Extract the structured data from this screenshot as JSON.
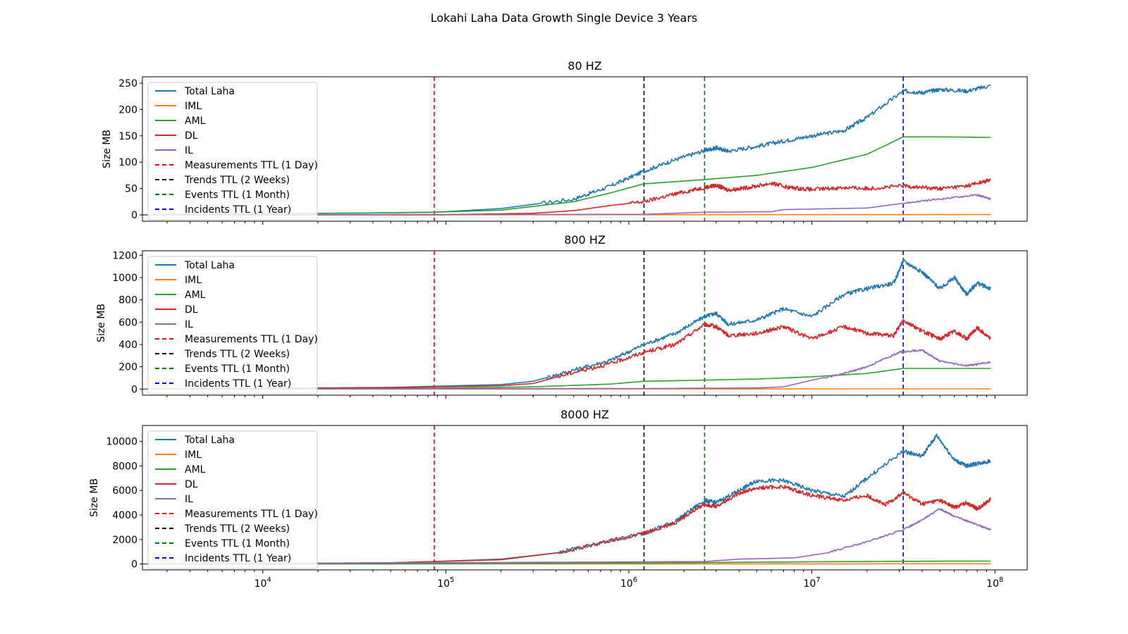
{
  "figure": {
    "suptitle": "Lokahi Laha Data Growth Single Device 3 Years"
  },
  "colors": {
    "Total Laha": "#1f77b4",
    "IML": "#ff7f0e",
    "AML": "#2ca02c",
    "DL": "#d62728",
    "IL": "#9467bd",
    "Measurements TTL (1 Day)": "#ff0000",
    "Trends TTL (2 Weeks)": "#000000",
    "Events TTL (1 Month)": "#008000",
    "Incidents TTL (1 Year)": "#0000ff"
  },
  "legend": {
    "placement": "upper-left",
    "entries": [
      {
        "label": "Total Laha",
        "style": "solid"
      },
      {
        "label": "IML",
        "style": "solid"
      },
      {
        "label": "AML",
        "style": "solid"
      },
      {
        "label": "DL",
        "style": "solid"
      },
      {
        "label": "IL",
        "style": "solid"
      },
      {
        "label": "Measurements TTL (1 Day)",
        "style": "dashed"
      },
      {
        "label": "Trends TTL (2 Weeks)",
        "style": "dashed"
      },
      {
        "label": "Events TTL (1 Month)",
        "style": "dashed"
      },
      {
        "label": "Incidents TTL (1 Year)",
        "style": "dashed"
      }
    ]
  },
  "chart_data": [
    {
      "type": "line",
      "title": "80 HZ",
      "xlabel": "",
      "ylabel": "Size MB",
      "xscale": "log",
      "xlim": [
        2200,
        150000000
      ],
      "ylim": [
        -12,
        262
      ],
      "yticks": [
        0,
        50,
        100,
        150,
        200,
        250
      ],
      "grid": false,
      "vlines": [
        {
          "name": "Measurements TTL (1 Day)",
          "x": 86400
        },
        {
          "name": "Trends TTL (2 Weeks)",
          "x": 1209600
        },
        {
          "name": "Events TTL (1 Month)",
          "x": 2592000
        },
        {
          "name": "Incidents TTL (1 Year)",
          "x": 31536000
        }
      ],
      "series": [
        {
          "name": "Total Laha",
          "x": [
            2200,
            10000,
            50000,
            86400,
            200000,
            500000,
            800000,
            1209600,
            1800000,
            2592000,
            3000000,
            3500000,
            5000000,
            7000000,
            10000000,
            15000000,
            20000000,
            31536000,
            40000000,
            50000000,
            70000000,
            94600000
          ],
          "y": [
            0,
            2,
            4,
            5,
            12,
            30,
            55,
            83,
            105,
            122,
            127,
            121,
            130,
            140,
            150,
            160,
            185,
            235,
            232,
            238,
            235,
            245
          ]
        },
        {
          "name": "IML",
          "x": [
            2200,
            94600000
          ],
          "y": [
            0,
            0.5
          ]
        },
        {
          "name": "AML",
          "x": [
            2200,
            10000,
            50000,
            86400,
            200000,
            500000,
            800000,
            1209600,
            2592000,
            5000000,
            10000000,
            20000000,
            31536000,
            50000000,
            94600000
          ],
          "y": [
            0,
            2,
            4,
            5,
            9,
            25,
            42,
            59,
            67,
            75,
            90,
            115,
            148,
            148,
            147
          ]
        },
        {
          "name": "DL",
          "x": [
            2200,
            86400,
            300000,
            500000,
            800000,
            1209600,
            1800000,
            2592000,
            3000000,
            3500000,
            4500000,
            6000000,
            7500000,
            10000000,
            15000000,
            20000000,
            31536000,
            40000000,
            50000000,
            70000000,
            94600000
          ],
          "y": [
            0,
            0,
            3,
            8,
            18,
            25,
            40,
            52,
            56,
            47,
            52,
            60,
            52,
            48,
            52,
            50,
            55,
            52,
            50,
            55,
            66
          ]
        },
        {
          "name": "IL",
          "x": [
            2200,
            1200000,
            2592000,
            6000000,
            7000000,
            20000000,
            31536000,
            50000000,
            80000000,
            94600000
          ],
          "y": [
            0,
            1,
            5,
            6,
            10,
            13,
            22,
            30,
            38,
            30
          ]
        }
      ]
    },
    {
      "type": "line",
      "title": "800 HZ",
      "xlabel": "",
      "ylabel": "Size MB",
      "xscale": "log",
      "xlim": [
        2200,
        150000000
      ],
      "ylim": [
        -55,
        1240
      ],
      "yticks": [
        0,
        200,
        400,
        600,
        800,
        1000,
        1200
      ],
      "grid": false,
      "vlines": [
        {
          "name": "Measurements TTL (1 Day)",
          "x": 86400
        },
        {
          "name": "Trends TTL (2 Weeks)",
          "x": 1209600
        },
        {
          "name": "Events TTL (1 Month)",
          "x": 2592000
        },
        {
          "name": "Incidents TTL (1 Year)",
          "x": 31536000
        }
      ],
      "series": [
        {
          "name": "Total Laha",
          "x": [
            2200,
            50000,
            86400,
            200000,
            300000,
            500000,
            800000,
            1209600,
            1800000,
            2592000,
            3000000,
            3500000,
            5000000,
            7000000,
            10000000,
            15000000,
            20000000,
            28000000,
            31536000,
            40000000,
            50000000,
            60000000,
            70000000,
            80000000,
            94600000
          ],
          "y": [
            0,
            15,
            25,
            40,
            70,
            170,
            260,
            400,
            500,
            650,
            680,
            580,
            620,
            720,
            650,
            850,
            900,
            950,
            1150,
            1050,
            900,
            1000,
            850,
            950,
            900
          ]
        },
        {
          "name": "IML",
          "x": [
            2200,
            94600000
          ],
          "y": [
            0,
            2
          ]
        },
        {
          "name": "AML",
          "x": [
            2200,
            86400,
            300000,
            800000,
            1209600,
            2592000,
            5000000,
            10000000,
            20000000,
            31536000,
            50000000,
            94600000
          ],
          "y": [
            0,
            8,
            20,
            45,
            70,
            80,
            90,
            110,
            140,
            185,
            185,
            185
          ]
        },
        {
          "name": "DL",
          "x": [
            2200,
            50000,
            86400,
            200000,
            300000,
            500000,
            800000,
            1209600,
            1800000,
            2592000,
            3000000,
            3500000,
            5000000,
            7000000,
            10000000,
            15000000,
            20000000,
            28000000,
            31536000,
            40000000,
            50000000,
            60000000,
            70000000,
            80000000,
            94600000
          ],
          "y": [
            0,
            12,
            20,
            30,
            50,
            150,
            230,
            330,
            400,
            580,
            560,
            480,
            500,
            560,
            450,
            560,
            500,
            480,
            620,
            520,
            450,
            520,
            450,
            550,
            450
          ]
        },
        {
          "name": "IL",
          "x": [
            2200,
            1200000,
            5000000,
            7000000,
            10000000,
            15000000,
            20000000,
            30000000,
            40000000,
            50000000,
            70000000,
            94600000
          ],
          "y": [
            0,
            5,
            10,
            20,
            80,
            140,
            200,
            330,
            350,
            250,
            210,
            240
          ]
        }
      ]
    },
    {
      "type": "line",
      "title": "8000 HZ",
      "xlabel": "",
      "ylabel": "Size MB",
      "xscale": "log",
      "xlim": [
        2200,
        150000000
      ],
      "ylim": [
        -480,
        11300
      ],
      "yticks": [
        0,
        2000,
        4000,
        6000,
        8000,
        10000
      ],
      "xticks": [
        10000,
        100000,
        1000000,
        10000000,
        100000000
      ],
      "grid": false,
      "vlines": [
        {
          "name": "Measurements TTL (1 Day)",
          "x": 86400
        },
        {
          "name": "Trends TTL (2 Weeks)",
          "x": 1209600
        },
        {
          "name": "Events TTL (1 Month)",
          "x": 2592000
        },
        {
          "name": "Incidents TTL (1 Year)",
          "x": 31536000
        }
      ],
      "series": [
        {
          "name": "Total Laha",
          "x": [
            2200,
            50000,
            86400,
            200000,
            400000,
            700000,
            1209600,
            1800000,
            2592000,
            3000000,
            4000000,
            5000000,
            7000000,
            10000000,
            15000000,
            20000000,
            31536000,
            40000000,
            48000000,
            60000000,
            70000000,
            80000000,
            94600000
          ],
          "y": [
            0,
            100,
            200,
            400,
            900,
            1700,
            2500,
            3500,
            5200,
            5000,
            6000,
            6800,
            6800,
            6000,
            5500,
            7000,
            9200,
            8800,
            10500,
            8500,
            8000,
            8200,
            8400
          ]
        },
        {
          "name": "IML",
          "x": [
            2200,
            94600000
          ],
          "y": [
            0,
            20
          ]
        },
        {
          "name": "AML",
          "x": [
            2200,
            86400,
            1209600,
            2592000,
            10000000,
            31536000,
            94600000
          ],
          "y": [
            0,
            20,
            80,
            120,
            180,
            220,
            240
          ]
        },
        {
          "name": "DL",
          "x": [
            2200,
            50000,
            86400,
            200000,
            400000,
            700000,
            1209600,
            1800000,
            2592000,
            3000000,
            4000000,
            5000000,
            7000000,
            10000000,
            15000000,
            20000000,
            25000000,
            31536000,
            40000000,
            50000000,
            60000000,
            70000000,
            80000000,
            94600000
          ],
          "y": [
            0,
            100,
            200,
            350,
            900,
            1700,
            2500,
            3400,
            4900,
            4700,
            5800,
            6200,
            6300,
            5600,
            5200,
            5600,
            4800,
            5800,
            4900,
            5200,
            4600,
            5000,
            4500,
            5300
          ]
        },
        {
          "name": "IL",
          "x": [
            2200,
            2592000,
            4000000,
            8000000,
            12000000,
            20000000,
            31536000,
            40000000,
            50000000,
            60000000,
            80000000,
            94600000
          ],
          "y": [
            0,
            200,
            400,
            500,
            900,
            1800,
            2800,
            3600,
            4500,
            3900,
            3200,
            2800
          ]
        }
      ]
    }
  ]
}
